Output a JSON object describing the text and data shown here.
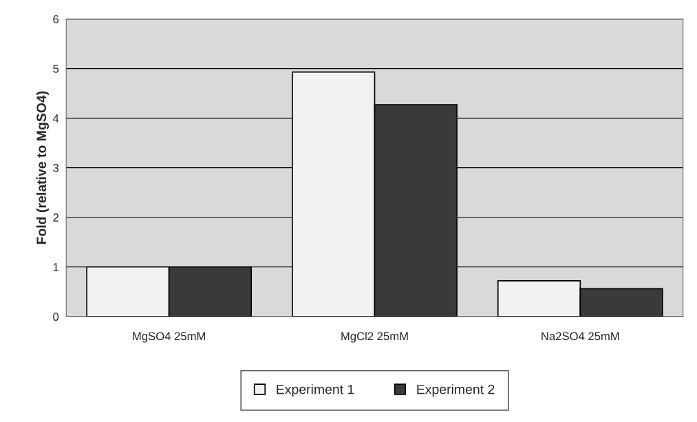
{
  "chart_data": {
    "type": "bar",
    "ylabel": "Fold (relative to MgSO4)",
    "categories": [
      "MgSO4 25mM",
      "MgCl2 25mM",
      "Na2SO4 25mM"
    ],
    "series": [
      {
        "name": "Experiment 1",
        "color": "#f2f2f2",
        "values": [
          1.0,
          4.93,
          0.72
        ]
      },
      {
        "name": "Experiment 2",
        "color": "#3a3a3a",
        "values": [
          1.0,
          4.27,
          0.56
        ]
      }
    ],
    "ylim": [
      0,
      6
    ],
    "yticks": [
      0,
      1,
      2,
      3,
      4,
      5,
      6
    ],
    "grid": "y",
    "legend": "bottom"
  }
}
